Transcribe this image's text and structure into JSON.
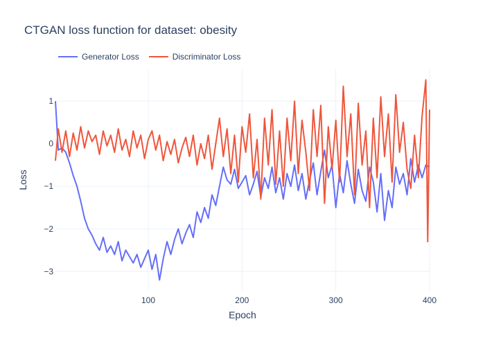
{
  "chart_data": {
    "type": "line",
    "title": "CTGAN loss function for dataset: obesity",
    "xlabel": "Epoch",
    "ylabel": "Loss",
    "xlim": [
      1,
      400
    ],
    "ylim": [
      -3.45,
      1.75
    ],
    "grid": true,
    "legend_position": "top-left",
    "x_ticks": [
      100,
      200,
      300,
      400
    ],
    "y_ticks": [
      1,
      0,
      -1,
      -2,
      -3
    ],
    "x_tick_labels": [
      "100",
      "200",
      "300",
      "400"
    ],
    "y_tick_labels": [
      "1",
      "0",
      "−1",
      "−2",
      "−3"
    ],
    "colors": {
      "generator": "#636efa",
      "discriminator": "#ef553b"
    },
    "series": [
      {
        "name": "Generator Loss",
        "color": "#636efa",
        "x": [
          1,
          4,
          8,
          12,
          16,
          20,
          24,
          28,
          32,
          36,
          40,
          44,
          48,
          52,
          56,
          60,
          64,
          68,
          72,
          76,
          80,
          84,
          88,
          92,
          96,
          100,
          104,
          108,
          112,
          116,
          120,
          124,
          128,
          132,
          136,
          140,
          144,
          148,
          152,
          156,
          160,
          164,
          168,
          172,
          176,
          180,
          184,
          188,
          192,
          196,
          200,
          204,
          208,
          212,
          216,
          220,
          224,
          228,
          232,
          236,
          240,
          244,
          248,
          252,
          256,
          260,
          264,
          268,
          272,
          276,
          280,
          284,
          288,
          292,
          296,
          300,
          304,
          308,
          312,
          316,
          320,
          324,
          328,
          332,
          336,
          340,
          344,
          348,
          352,
          356,
          360,
          364,
          368,
          372,
          376,
          380,
          384,
          388,
          392,
          396,
          400
        ],
        "y": [
          1.0,
          -0.15,
          -0.1,
          -0.2,
          -0.45,
          -0.75,
          -1.0,
          -1.35,
          -1.75,
          -2.0,
          -2.15,
          -2.35,
          -2.5,
          -2.2,
          -2.55,
          -2.4,
          -2.6,
          -2.3,
          -2.75,
          -2.5,
          -2.65,
          -2.8,
          -2.6,
          -2.9,
          -2.7,
          -2.5,
          -2.95,
          -2.6,
          -3.2,
          -2.7,
          -2.3,
          -2.6,
          -2.25,
          -2.0,
          -2.35,
          -2.1,
          -1.9,
          -2.2,
          -1.6,
          -1.85,
          -1.5,
          -1.75,
          -1.2,
          -1.45,
          -1.0,
          -0.55,
          -0.85,
          -0.95,
          -0.6,
          -1.05,
          -0.9,
          -0.75,
          -1.2,
          -0.95,
          -0.65,
          -1.25,
          -0.8,
          -1.05,
          -0.55,
          -1.15,
          -0.8,
          -1.3,
          -0.7,
          -1.0,
          -0.5,
          -1.1,
          -0.7,
          -1.3,
          -0.85,
          -0.45,
          -1.2,
          -0.65,
          -0.15,
          -0.8,
          -0.5,
          -1.5,
          -0.7,
          -1.15,
          -0.4,
          -0.95,
          -1.4,
          -0.6,
          -1.1,
          -1.35,
          -0.55,
          -0.9,
          -1.6,
          -0.7,
          -1.8,
          -1.1,
          -1.5,
          -0.55,
          -0.95,
          -0.7,
          -1.2,
          -0.35,
          -0.9,
          -0.5,
          -0.8,
          -0.5,
          -0.55
        ]
      },
      {
        "name": "Discriminator Loss",
        "color": "#ef553b",
        "x": [
          1,
          4,
          8,
          12,
          16,
          20,
          24,
          28,
          32,
          36,
          40,
          44,
          48,
          52,
          56,
          60,
          64,
          68,
          72,
          76,
          80,
          84,
          88,
          92,
          96,
          100,
          104,
          108,
          112,
          116,
          120,
          124,
          128,
          132,
          136,
          140,
          144,
          148,
          152,
          156,
          160,
          164,
          168,
          172,
          176,
          180,
          184,
          188,
          192,
          196,
          200,
          204,
          208,
          212,
          216,
          220,
          224,
          228,
          232,
          236,
          240,
          244,
          248,
          252,
          256,
          260,
          264,
          268,
          272,
          276,
          280,
          284,
          288,
          292,
          296,
          300,
          304,
          308,
          312,
          316,
          320,
          324,
          328,
          332,
          336,
          340,
          344,
          348,
          352,
          356,
          360,
          364,
          368,
          372,
          376,
          380,
          384,
          388,
          392,
          396,
          398,
          400
        ],
        "y": [
          -0.4,
          0.35,
          -0.2,
          0.3,
          -0.3,
          0.25,
          -0.15,
          0.4,
          -0.1,
          0.3,
          0.05,
          0.2,
          -0.25,
          0.3,
          -0.05,
          0.2,
          -0.2,
          0.35,
          -0.15,
          0.1,
          -0.3,
          0.3,
          -0.1,
          0.2,
          -0.35,
          0.1,
          0.3,
          -0.15,
          0.2,
          -0.4,
          0.05,
          -0.25,
          0.1,
          -0.45,
          -0.1,
          0.15,
          -0.3,
          0.2,
          -0.5,
          0.0,
          -0.35,
          0.2,
          -0.6,
          0.0,
          0.6,
          -0.3,
          0.35,
          -0.7,
          0.2,
          -0.9,
          0.4,
          -0.2,
          0.7,
          -0.8,
          0.1,
          -1.3,
          0.6,
          -0.5,
          0.8,
          -0.95,
          0.3,
          -1.0,
          0.6,
          -0.4,
          1.0,
          -0.7,
          0.55,
          -0.2,
          -1.1,
          0.8,
          -0.3,
          0.9,
          -1.4,
          0.4,
          -0.6,
          0.55,
          -0.9,
          1.35,
          -0.3,
          0.7,
          -1.2,
          0.95,
          -0.5,
          0.3,
          -1.5,
          0.6,
          -0.8,
          1.1,
          -0.3,
          0.7,
          -0.9,
          1.15,
          -0.2,
          0.5,
          -0.6,
          -1.05,
          0.2,
          -0.8,
          0.65,
          1.5,
          -2.3,
          0.8
        ]
      }
    ]
  }
}
